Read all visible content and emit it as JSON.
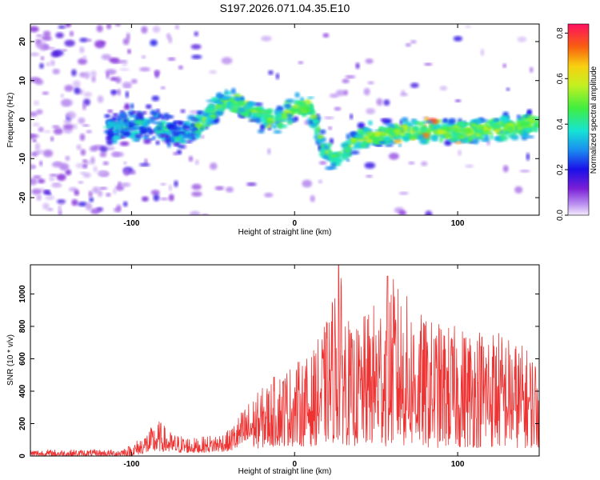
{
  "title": "S197.2026.071.04.35.E10",
  "chart_data": [
    {
      "type": "heatmap",
      "xlabel": "Height of straight line (km)",
      "ylabel": "Frequency (Hz)",
      "xlim": [
        -162,
        150
      ],
      "ylim": [
        -24.5,
        24.5
      ],
      "x_ticks": [
        -100,
        0,
        100
      ],
      "y_ticks": [
        -20,
        -10,
        0,
        10,
        20
      ],
      "colorbar": {
        "label": "Normalized spectral amplitude",
        "range": [
          0,
          0.84
        ],
        "ticks": [
          "0.0",
          "0.2",
          "0.4",
          "0.6",
          "0.8"
        ]
      },
      "ridge": [
        {
          "x": -160,
          "f": -3
        },
        {
          "x": -130,
          "f": -2
        },
        {
          "x": -100,
          "f": -2
        },
        {
          "x": -90,
          "f": -1
        },
        {
          "x": -80,
          "f": -2
        },
        {
          "x": -70,
          "f": -5
        },
        {
          "x": -60,
          "f": -2
        },
        {
          "x": -50,
          "f": 2
        },
        {
          "x": -40,
          "f": 5
        },
        {
          "x": -30,
          "f": 3
        },
        {
          "x": -20,
          "f": 1
        },
        {
          "x": -10,
          "f": 0
        },
        {
          "x": 0,
          "f": 3
        },
        {
          "x": 10,
          "f": 3
        },
        {
          "x": 18,
          "f": -8
        },
        {
          "x": 25,
          "f": -10
        },
        {
          "x": 35,
          "f": -6
        },
        {
          "x": 50,
          "f": -4
        },
        {
          "x": 70,
          "f": -3
        },
        {
          "x": 90,
          "f": -3
        },
        {
          "x": 110,
          "f": -3
        },
        {
          "x": 130,
          "f": -2
        },
        {
          "x": 148,
          "f": -1
        }
      ]
    },
    {
      "type": "line",
      "xlabel": "Height of straight line (km)",
      "ylabel": "SNR (10 * v/v)",
      "xlim": [
        -162,
        150
      ],
      "ylim": [
        0,
        1180
      ],
      "x_ticks": [
        -100,
        0,
        100
      ],
      "y_ticks": [
        0,
        200,
        400,
        600,
        800,
        1000
      ],
      "color": "#ee3333",
      "envelope": [
        {
          "x": -162,
          "min": 0,
          "max": 40
        },
        {
          "x": -110,
          "min": 0,
          "max": 40
        },
        {
          "x": -100,
          "min": 0,
          "max": 70
        },
        {
          "x": -90,
          "min": 20,
          "max": 160
        },
        {
          "x": -83,
          "min": 30,
          "max": 220
        },
        {
          "x": -75,
          "min": 20,
          "max": 140
        },
        {
          "x": -60,
          "min": 20,
          "max": 110
        },
        {
          "x": -40,
          "min": 30,
          "max": 160
        },
        {
          "x": -30,
          "min": 40,
          "max": 320
        },
        {
          "x": -20,
          "min": 50,
          "max": 420
        },
        {
          "x": -10,
          "min": 60,
          "max": 520
        },
        {
          "x": 0,
          "min": 60,
          "max": 580
        },
        {
          "x": 10,
          "min": 60,
          "max": 620
        },
        {
          "x": 20,
          "min": 80,
          "max": 850
        },
        {
          "x": 27,
          "min": 80,
          "max": 1180
        },
        {
          "x": 35,
          "min": 60,
          "max": 760
        },
        {
          "x": 60,
          "min": 60,
          "max": 1110
        },
        {
          "x": 80,
          "min": 50,
          "max": 850
        },
        {
          "x": 100,
          "min": 50,
          "max": 800
        },
        {
          "x": 120,
          "min": 50,
          "max": 820
        },
        {
          "x": 150,
          "min": 50,
          "max": 620
        }
      ]
    }
  ]
}
